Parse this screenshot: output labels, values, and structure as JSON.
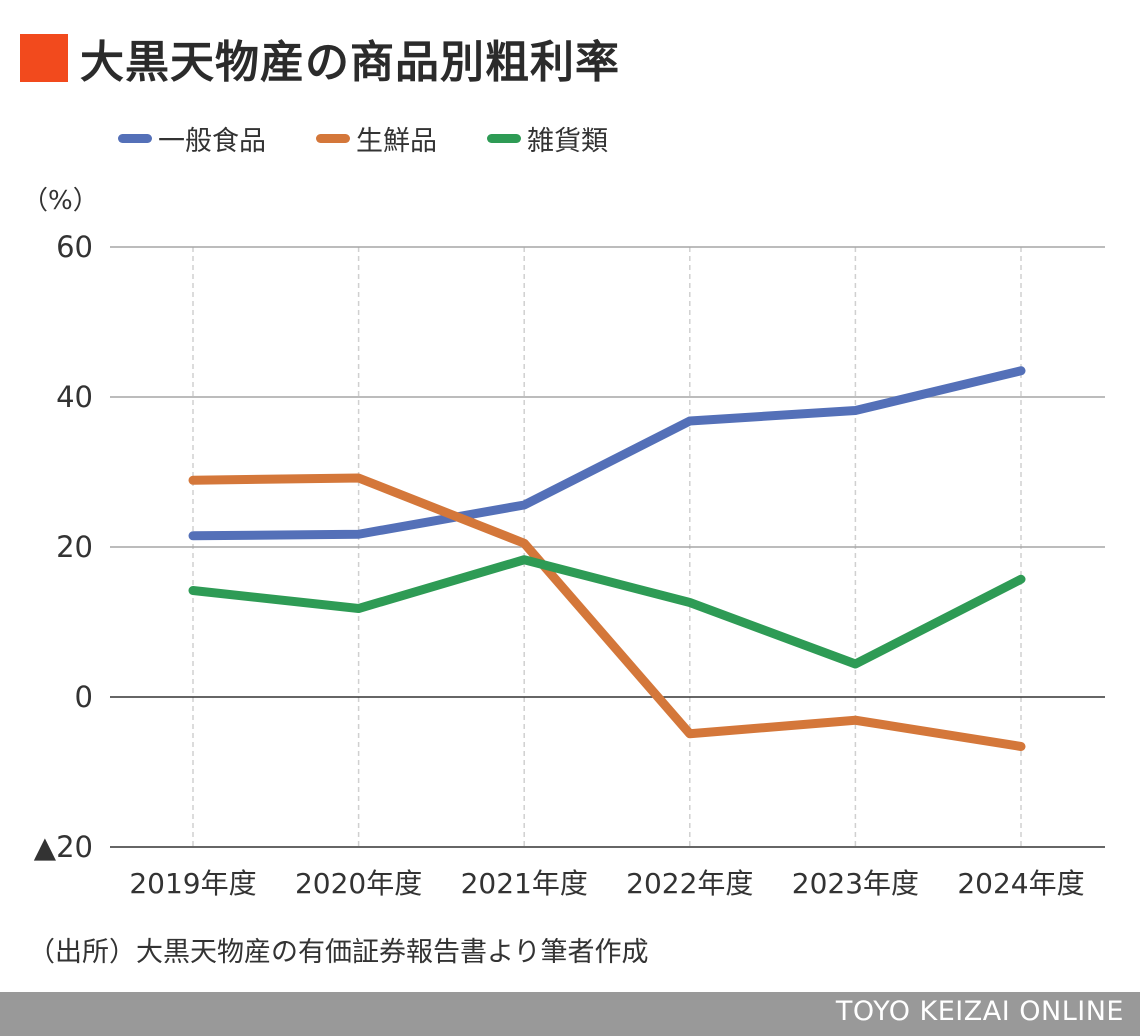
{
  "header": {
    "title": "大黒天物産の商品別粗利率"
  },
  "colors": {
    "title_accent": "#f24a1d",
    "footer_bg": "#999999",
    "grid_major": "#a6a6a6",
    "grid_zero": "#333333",
    "grid_vertical": "#d0d0d0"
  },
  "chart_data": {
    "type": "line",
    "title": "大黒天物産の商品別粗利率",
    "unit_label": "（%）",
    "categories": [
      "2019年度",
      "2020年度",
      "2021年度",
      "2022年度",
      "2023年度",
      "2024年度"
    ],
    "series": [
      {
        "name": "一般食品",
        "color": "#5470b8",
        "values": [
          21.5,
          21.7,
          25.6,
          36.8,
          38.2,
          43.5
        ]
      },
      {
        "name": "生鮮品",
        "color": "#d4773a",
        "values": [
          28.9,
          29.2,
          20.5,
          -4.9,
          -3.1,
          -6.6
        ]
      },
      {
        "name": "雑貨類",
        "color": "#2e9b55",
        "values": [
          14.2,
          11.8,
          18.3,
          12.6,
          4.4,
          15.7
        ]
      }
    ],
    "ylim": [
      -20,
      60
    ],
    "yticks": [
      {
        "value": 60,
        "label": "60"
      },
      {
        "value": 40,
        "label": "40"
      },
      {
        "value": 20,
        "label": "20"
      },
      {
        "value": 0,
        "label": "0"
      },
      {
        "value": -20,
        "label": "▲20"
      }
    ],
    "grid": true,
    "legend_position": "top-left"
  },
  "source_note": "（出所）大黒天物産の有価証券報告書より筆者作成",
  "footer": {
    "brand": "TOYO KEIZAI ONLINE"
  }
}
